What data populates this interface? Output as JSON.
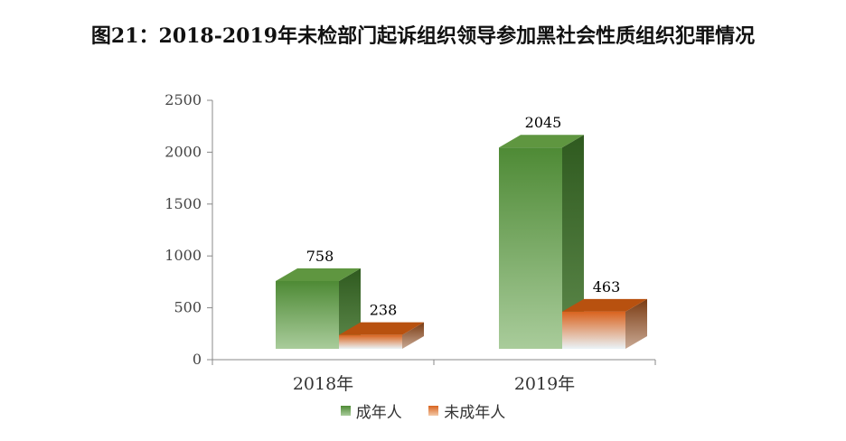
{
  "title": "图21：2018-2019年未检部门起诉组织领导参加黑社会性质组织犯罪情况",
  "chart_data": {
    "type": "bar",
    "style": "3d-column",
    "categories": [
      "2018年",
      "2019年"
    ],
    "series": [
      {
        "name": "成年人",
        "values": [
          758,
          2045
        ]
      },
      {
        "name": "未成年人",
        "values": [
          238,
          463
        ]
      }
    ],
    "ylim": [
      0,
      2500
    ],
    "yticks": [
      "0",
      "500",
      "1000",
      "1500",
      "2000",
      "2500"
    ],
    "grid": false,
    "legend": "bottom",
    "xlabel": "",
    "ylabel": ""
  },
  "colors": {
    "adult_front_top": "#4e8a35",
    "adult_front_bottom": "#a9cc9b",
    "adult_side": "#2f5a1f",
    "adult_top": "#5f9640",
    "minor_front_top": "#d9631e",
    "minor_front_bottom": "#eaf3f7",
    "minor_side": "#7a3b12",
    "minor_top": "#b8510f",
    "axis": "#888888"
  }
}
